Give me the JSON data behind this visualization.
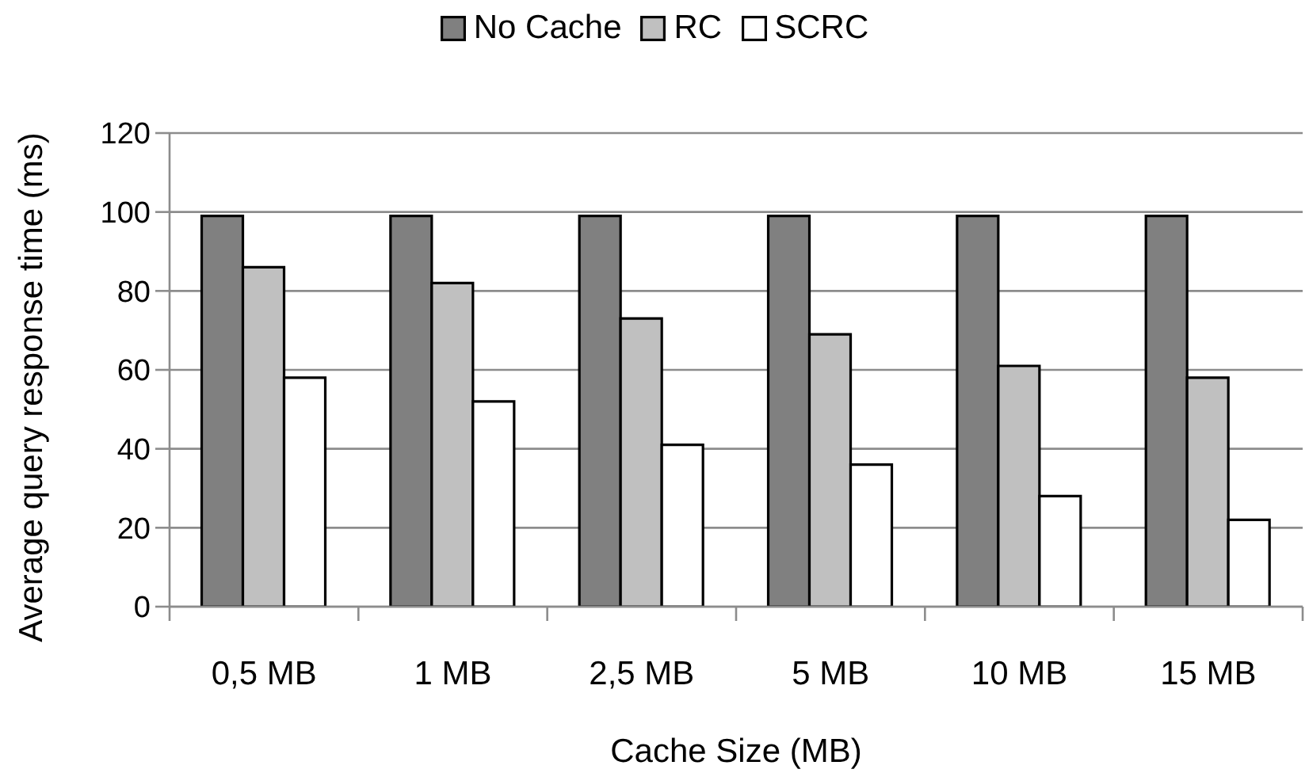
{
  "chart_data": {
    "type": "bar",
    "xlabel": "Cache Size (MB)",
    "ylabel": "Average query response time (ms)",
    "categories": [
      "0,5 MB",
      "1 MB",
      "2,5 MB",
      "5 MB",
      "10 MB",
      "15 MB"
    ],
    "series": [
      {
        "name": "No Cache",
        "color": "#808080",
        "values": [
          99,
          99,
          99,
          99,
          99,
          99
        ]
      },
      {
        "name": "RC",
        "color": "#c0c0c0",
        "values": [
          86,
          82,
          73,
          69,
          61,
          58
        ]
      },
      {
        "name": "SCRC",
        "color": "#ffffff",
        "values": [
          58,
          52,
          41,
          36,
          28,
          22
        ]
      }
    ],
    "ylim": [
      0,
      120
    ],
    "yticks": [
      0,
      20,
      40,
      60,
      80,
      100,
      120
    ],
    "grid": "y",
    "legend": "top"
  }
}
